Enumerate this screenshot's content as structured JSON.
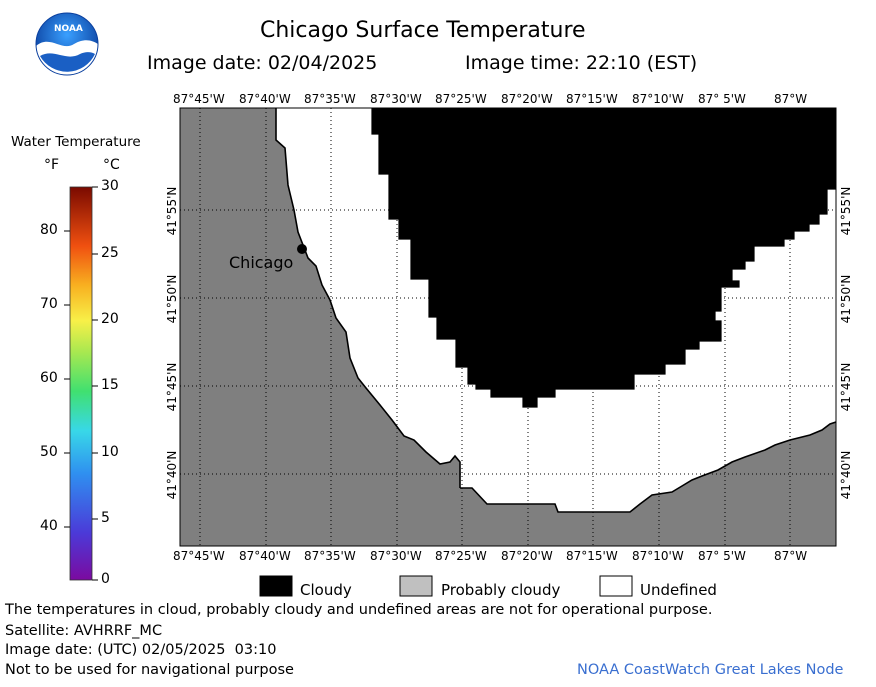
{
  "header": {
    "logo_text": "NOAA",
    "title": "Chicago Surface Temperature",
    "image_date": "Image date: 02/04/2025",
    "image_time": "Image time: 22:10 (EST)"
  },
  "colorbar": {
    "title": "Water Temperature",
    "unit_f": "°F",
    "unit_c": "°C",
    "f_ticks": [
      "80",
      "70",
      "60",
      "50",
      "40"
    ],
    "c_ticks": [
      "30",
      "25",
      "20",
      "15",
      "10",
      "5",
      "0"
    ]
  },
  "map": {
    "lon_labels": [
      "87°45'W",
      "87°40'W",
      "87°35'W",
      "87°30'W",
      "87°25'W",
      "87°20'W",
      "87°15'W",
      "87°10'W",
      "87° 5'W",
      "87°W"
    ],
    "lat_labels": [
      "41°55'N",
      "41°50'N",
      "41°45'N",
      "41°40'N"
    ],
    "city_label": "Chicago",
    "colors": {
      "land": "#7f7f7f",
      "cloudy": "#000000",
      "undefined": "#ffffff",
      "probably_cloudy": "#c0c0c0"
    }
  },
  "legend": {
    "cloudy": "Cloudy",
    "probably_cloudy": "Probably cloudy",
    "undefined": "Undefined"
  },
  "footer": {
    "note": "The temperatures in cloud, probably cloudy and undefined areas are not for operational purpose.",
    "satellite": "Satellite: AVHRRF_MC",
    "utc_date": "Image date: (UTC) 02/05/2025  03:10",
    "nav_warning": "Not to be used for navigational purpose",
    "credit": "NOAA CoastWatch Great Lakes Node"
  }
}
